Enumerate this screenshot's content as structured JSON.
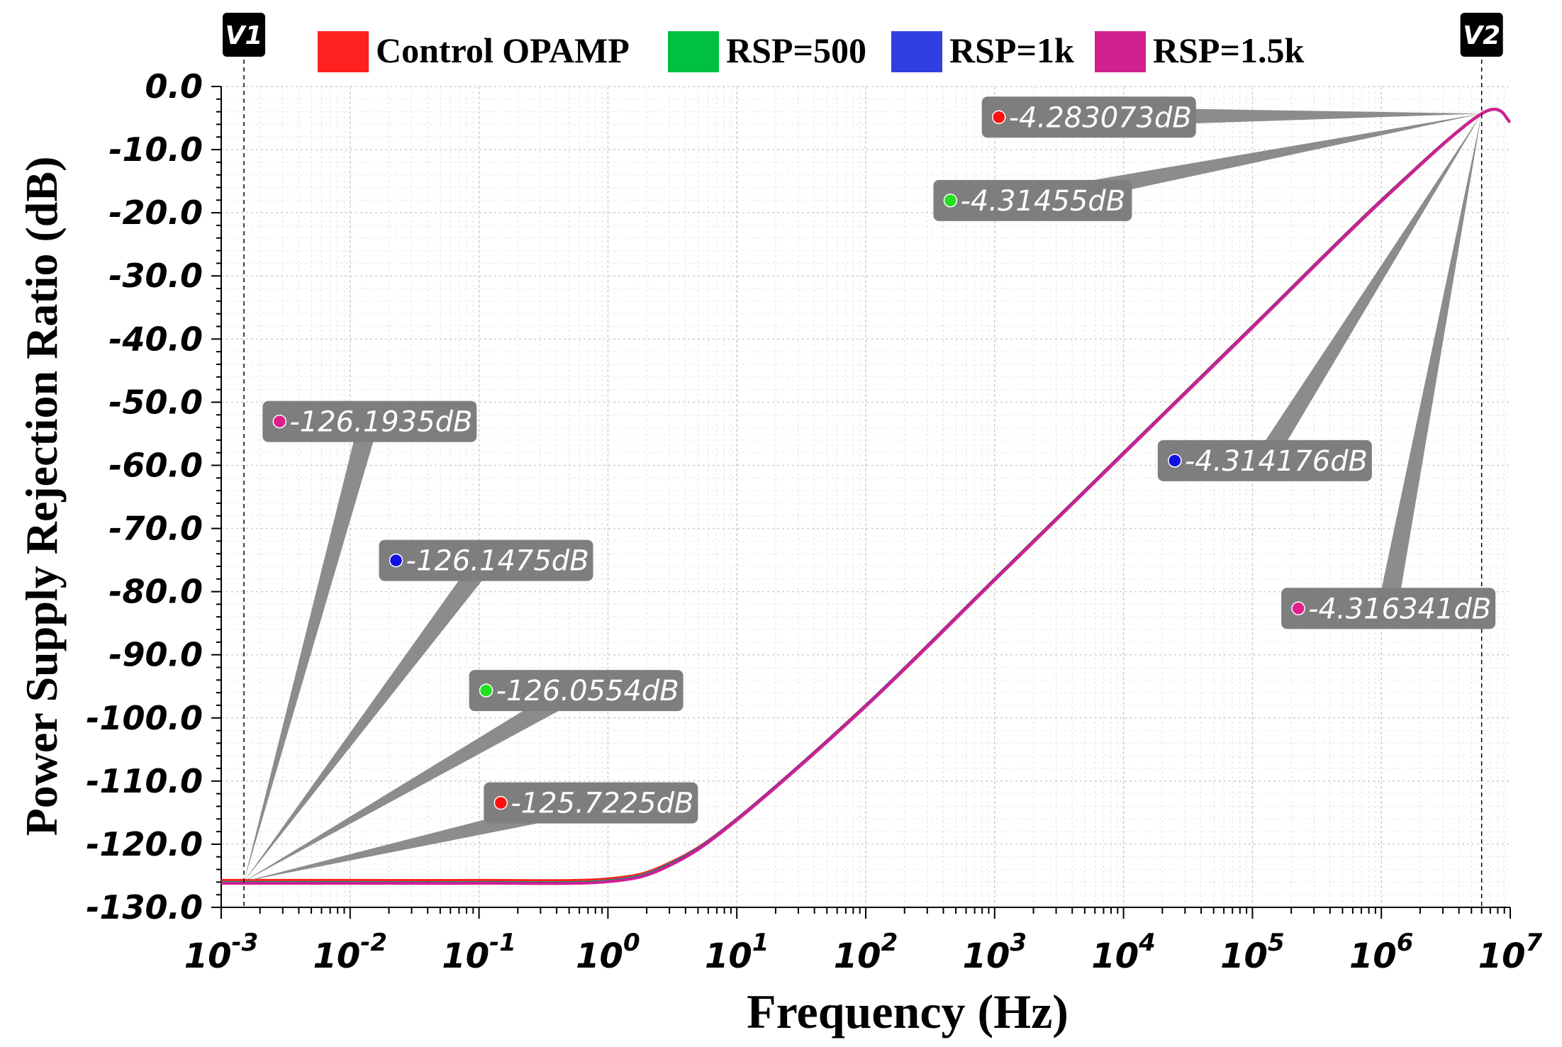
{
  "chart_data": {
    "type": "line",
    "title": "",
    "xlabel": "Frequency (Hz)",
    "ylabel": "Power Supply Rejection Ratio (dB)",
    "x_scale": "log",
    "xlim": [
      0.001,
      10000000
    ],
    "ylim": [
      -130,
      0
    ],
    "x_ticks": [
      {
        "value": 0.001,
        "base": "10",
        "exp": "-3"
      },
      {
        "value": 0.01,
        "base": "10",
        "exp": "-2"
      },
      {
        "value": 0.1,
        "base": "10",
        "exp": "-1"
      },
      {
        "value": 1,
        "base": "10",
        "exp": "0"
      },
      {
        "value": 10,
        "base": "10",
        "exp": "1"
      },
      {
        "value": 100,
        "base": "10",
        "exp": "2"
      },
      {
        "value": 1000,
        "base": "10",
        "exp": "3"
      },
      {
        "value": 10000,
        "base": "10",
        "exp": "4"
      },
      {
        "value": 100000,
        "base": "10",
        "exp": "5"
      },
      {
        "value": 1000000,
        "base": "10",
        "exp": "6"
      },
      {
        "value": 10000000,
        "base": "10",
        "exp": "7"
      }
    ],
    "y_ticks": [
      {
        "value": 0,
        "label": "0.0"
      },
      {
        "value": -10,
        "label": "-10.0"
      },
      {
        "value": -20,
        "label": "-20.0"
      },
      {
        "value": -30,
        "label": "-30.0"
      },
      {
        "value": -40,
        "label": "-40.0"
      },
      {
        "value": -50,
        "label": "-50.0"
      },
      {
        "value": -60,
        "label": "-60.0"
      },
      {
        "value": -70,
        "label": "-70.0"
      },
      {
        "value": -80,
        "label": "-80.0"
      },
      {
        "value": -90,
        "label": "-90.0"
      },
      {
        "value": -100,
        "label": "-100.0"
      },
      {
        "value": -110,
        "label": "-110.0"
      },
      {
        "value": -120,
        "label": "-120.0"
      },
      {
        "value": -130,
        "label": "-130.0"
      }
    ],
    "grid": true,
    "legend_position": "top",
    "series": [
      {
        "name": "Control OPAMP",
        "color": "#ff2020",
        "x": [
          0.001,
          0.01,
          0.1,
          1,
          3,
          10,
          100,
          1000,
          10000,
          100000,
          1000000,
          6000000,
          10000000
        ],
        "y": [
          -125.72,
          -125.72,
          -125.72,
          -125.5,
          -123,
          -116,
          -98,
          -78,
          -58,
          -38,
          -18,
          -4.28,
          -5.6
        ]
      },
      {
        "name": "RSP=500",
        "color": "#00c040",
        "x": [
          0.001,
          0.01,
          0.1,
          1,
          3,
          10,
          100,
          1000,
          10000,
          100000,
          1000000,
          6000000,
          10000000
        ],
        "y": [
          -126.06,
          -126.06,
          -126.06,
          -125.8,
          -123.2,
          -116.1,
          -98.1,
          -78.1,
          -58.1,
          -38.1,
          -18.1,
          -4.31,
          -5.6
        ]
      },
      {
        "name": "RSP=1k",
        "color": "#3040e0",
        "x": [
          0.001,
          0.01,
          0.1,
          1,
          3,
          10,
          100,
          1000,
          10000,
          100000,
          1000000,
          6000000,
          10000000
        ],
        "y": [
          -126.15,
          -126.15,
          -126.15,
          -125.9,
          -123.3,
          -116.1,
          -98.1,
          -78.1,
          -58.1,
          -38.1,
          -18.1,
          -4.31,
          -5.6
        ]
      },
      {
        "name": "RSP=1.5k",
        "color": "#d02090",
        "x": [
          0.001,
          0.01,
          0.1,
          1,
          3,
          10,
          100,
          1000,
          10000,
          100000,
          1000000,
          6000000,
          10000000
        ],
        "y": [
          -126.19,
          -126.19,
          -126.19,
          -125.95,
          -123.4,
          -116.2,
          -98.2,
          -78.2,
          -58.2,
          -38.2,
          -18.2,
          -4.32,
          -5.6
        ]
      }
    ],
    "cursors": [
      {
        "label": "V1",
        "x": 0.0015
      },
      {
        "label": "V2",
        "x": 6000000
      }
    ],
    "annotations": [
      {
        "text": "-4.283073dB",
        "dot_color": "#ff1010",
        "box_x": 950,
        "box_y": -1.6,
        "cursor": 1
      },
      {
        "text": "-4.31455dB",
        "dot_color": "#20e020",
        "box_x": 400,
        "box_y": -14.8,
        "cursor": 1
      },
      {
        "text": "-4.314176dB",
        "dot_color": "#1010e0",
        "box_x": 22000,
        "box_y": -56.0,
        "cursor": 1
      },
      {
        "text": "-4.316341dB",
        "dot_color": "#e0208a",
        "box_x": 200000,
        "box_y": -79.4,
        "cursor": 1
      },
      {
        "text": "-126.1935dB",
        "dot_color": "#e0208a",
        "box_x": 0.0025,
        "box_y": -49.8,
        "cursor": 0
      },
      {
        "text": "-126.1475dB",
        "dot_color": "#1010e0",
        "box_x": 0.02,
        "box_y": -71.8,
        "cursor": 0
      },
      {
        "text": "-126.0554dB",
        "dot_color": "#20e020",
        "box_x": 0.1,
        "box_y": -92.4,
        "cursor": 0
      },
      {
        "text": "-125.7225dB",
        "dot_color": "#ff1010",
        "box_x": 0.13,
        "box_y": -110.2,
        "cursor": 0
      }
    ]
  }
}
